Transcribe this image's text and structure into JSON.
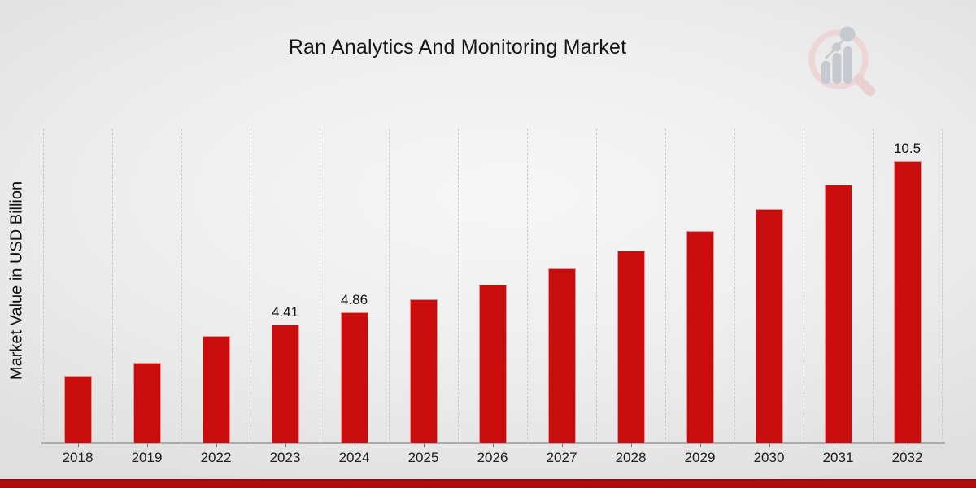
{
  "chart_data": {
    "type": "bar",
    "title": "Ran Analytics And Monitoring Market",
    "ylabel": "Market Value in USD Billion",
    "xlabel": "",
    "categories": [
      "2018",
      "2019",
      "2022",
      "2023",
      "2024",
      "2025",
      "2026",
      "2027",
      "2028",
      "2029",
      "2030",
      "2031",
      "2032"
    ],
    "values": [
      2.5,
      3.0,
      4.0,
      4.41,
      4.86,
      5.35,
      5.9,
      6.5,
      7.15,
      7.9,
      8.7,
      9.6,
      10.5
    ],
    "value_labels": {
      "2023": "4.41",
      "2024": "4.86",
      "2032": "10.5"
    },
    "ylim": [
      0,
      11.7
    ],
    "grid": "vertical-dashed",
    "legend": "none",
    "bar_color": "#c90c0c"
  },
  "branding": {
    "logo_name": "mrfr-magnifier-bar-chart-logo",
    "logo_ring_color": "#ecd6d6",
    "logo_bar_color": "#c6c9d0"
  },
  "footer": {
    "accent_color": "#b50d0d"
  }
}
